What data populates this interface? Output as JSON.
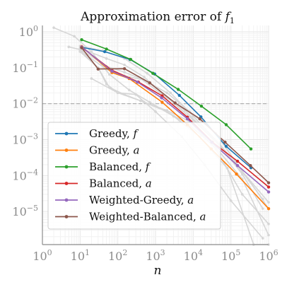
{
  "chart_data": {
    "type": "line",
    "title": "Approximation error of",
    "title_symbol": "f",
    "title_subscript": "1",
    "xlabel": "n",
    "ylabel": "",
    "xscale": "log",
    "yscale": "log",
    "xlim": [
      1,
      1000000
    ],
    "ylim": [
      1.2e-06,
      1.5
    ],
    "x_ticks": [
      {
        "value": 1,
        "base": "10",
        "exp": "0"
      },
      {
        "value": 10,
        "base": "10",
        "exp": "1"
      },
      {
        "value": 100,
        "base": "10",
        "exp": "2"
      },
      {
        "value": 1000,
        "base": "10",
        "exp": "3"
      },
      {
        "value": 10000,
        "base": "10",
        "exp": "4"
      },
      {
        "value": 100000,
        "base": "10",
        "exp": "5"
      },
      {
        "value": 1000000,
        "base": "10",
        "exp": "6"
      }
    ],
    "y_ticks": [
      {
        "value": 1,
        "base": "10",
        "exp": "0"
      },
      {
        "value": 0.1,
        "base": "10",
        "exp": "−1"
      },
      {
        "value": 0.01,
        "base": "10",
        "exp": "−2"
      },
      {
        "value": 0.001,
        "base": "10",
        "exp": "−3"
      },
      {
        "value": 0.0001,
        "base": "10",
        "exp": "−4"
      },
      {
        "value": 1e-05,
        "base": "10",
        "exp": "−5"
      }
    ],
    "reference_line": {
      "y": 0.01,
      "style": "dashed",
      "color": "#b0b0b0"
    },
    "grid": true,
    "legend": {
      "placement": "bottom-left"
    },
    "colors": {
      "background_series": "#d6d6d6",
      "grid_major": "#e6e6e6",
      "grid_minor": "#f2f2f2",
      "axes": "#8c8c8c"
    },
    "background_series": [
      {
        "x": [
          2,
          7,
          20,
          60,
          200,
          700,
          3000,
          15000,
          80000,
          400000,
          1000000
        ],
        "y": [
          1.3,
          0.75,
          0.28,
          0.065,
          0.024,
          0.011,
          0.0045,
          0.0012,
          0.00016,
          1.2e-06,
          1.2e-06
        ]
      },
      {
        "x": [
          5,
          10,
          30,
          60,
          150,
          500,
          2000,
          8000,
          40000,
          200000,
          1000000
        ],
        "y": [
          0.38,
          0.32,
          0.1,
          0.028,
          0.018,
          0.011,
          0.0065,
          0.0032,
          0.00055,
          3e-05,
          4.5e-06
        ]
      },
      {
        "x": [
          10,
          30,
          50,
          100,
          300,
          1000,
          5000,
          20000,
          100000,
          700000
        ],
        "y": [
          0.28,
          0.1,
          0.035,
          0.02,
          0.018,
          0.006,
          0.0012,
          0.0002,
          2e-05,
          1.8e-06
        ]
      },
      {
        "x": [
          10,
          50,
          150,
          500,
          2000,
          10000,
          50000,
          200000,
          700000
        ],
        "y": [
          0.35,
          0.18,
          0.12,
          0.055,
          0.015,
          0.0035,
          0.0007,
          0.00011,
          1.2e-05
        ]
      },
      {
        "x": [
          10,
          50,
          150,
          400,
          1500,
          6000,
          30000,
          150000,
          700000
        ],
        "y": [
          0.33,
          0.11,
          0.075,
          0.05,
          0.018,
          0.0065,
          0.0012,
          0.00019,
          2.2e-05
        ]
      },
      {
        "x": [
          10,
          50,
          150,
          500,
          2000,
          8000,
          40000,
          200000,
          1000000
        ],
        "y": [
          0.3,
          0.09,
          0.06,
          0.045,
          0.02,
          0.006,
          0.0015,
          0.00013,
          1.8e-05
        ]
      },
      {
        "x": [
          10,
          40,
          150,
          600,
          2500,
          10000,
          50000,
          300000,
          1000000
        ],
        "y": [
          0.4,
          0.3,
          0.18,
          0.07,
          0.02,
          0.0045,
          0.00075,
          7.5e-05,
          1.2e-05
        ]
      },
      {
        "x": [
          20,
          100,
          400,
          2000,
          8000,
          40000,
          200000,
          1000000
        ],
        "y": [
          0.05,
          0.02,
          0.012,
          0.006,
          0.0025,
          0.0006,
          8e-05,
          2.2e-06
        ]
      }
    ],
    "series": [
      {
        "name": "Greedy,",
        "symbol": "f",
        "color": "#1f77b4",
        "x": [
          11,
          45,
          210,
          950,
          4300,
          16000,
          75000,
          340000
        ],
        "y": [
          0.37,
          0.28,
          0.17,
          0.067,
          0.017,
          0.0043,
          0.00065,
          0.000165
        ]
      },
      {
        "name": "Greedy,",
        "symbol": "a",
        "color": "#ff7f0e",
        "x": [
          11,
          70,
          200,
          1500,
          7000,
          30000,
          140000,
          1000000
        ],
        "y": [
          0.39,
          0.073,
          0.05,
          0.011,
          0.0026,
          0.00055,
          0.00011,
          1.2e-05
        ]
      },
      {
        "name": "Balanced,",
        "symbol": "f",
        "color": "#2ca02c",
        "x": [
          11,
          50,
          220,
          850,
          4000,
          16500,
          75000,
          340000
        ],
        "y": [
          0.6,
          0.33,
          0.17,
          0.07,
          0.025,
          0.0085,
          0.0026,
          0.00055
        ]
      },
      {
        "name": "Balanced,",
        "symbol": "a",
        "color": "#d62728",
        "x": [
          11,
          70,
          350,
          1500,
          7000,
          32000,
          150000,
          1000000
        ],
        "y": [
          0.37,
          0.085,
          0.04,
          0.0165,
          0.0042,
          0.00085,
          0.00025,
          4.8e-05
        ]
      },
      {
        "name": "Weighted-Greedy,",
        "symbol": "a",
        "color": "#9467bd",
        "x": [
          11,
          70,
          330,
          1450,
          7000,
          31000,
          150000,
          1000000
        ],
        "y": [
          0.38,
          0.08,
          0.04,
          0.0145,
          0.0038,
          0.00085,
          0.00019,
          3.5e-05
        ]
      },
      {
        "name": "Weighted-Balanced,",
        "symbol": "a",
        "color": "#8c564b",
        "x": [
          11,
          30,
          150,
          700,
          3300,
          15000,
          70000,
          330000,
          1000000
        ],
        "y": [
          0.36,
          0.092,
          0.094,
          0.038,
          0.0105,
          0.0038,
          0.00085,
          0.00019,
          6.3e-05
        ]
      }
    ]
  }
}
